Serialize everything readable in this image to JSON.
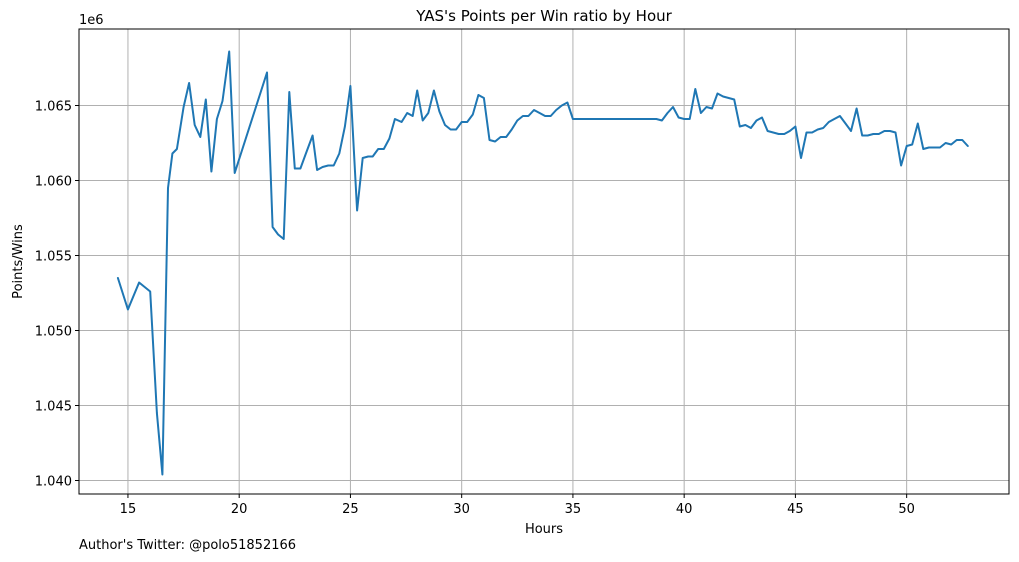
{
  "chart_data": {
    "type": "line",
    "title": "YAS's Points per Win ratio by Hour",
    "xlabel": "Hours",
    "ylabel": "Points/Wins",
    "offset_label": "1e6",
    "xlim": [
      12.8,
      54.6
    ],
    "ylim": [
      1.0391,
      1.0701
    ],
    "x_ticks": [
      15,
      20,
      25,
      30,
      35,
      40,
      45,
      50
    ],
    "y_ticks": [
      1.04,
      1.045,
      1.05,
      1.055,
      1.06,
      1.065
    ],
    "x_tick_labels": [
      "15",
      "20",
      "25",
      "30",
      "35",
      "40",
      "45",
      "50"
    ],
    "y_tick_labels": [
      "1.040",
      "1.045",
      "1.050",
      "1.055",
      "1.060",
      "1.065"
    ],
    "grid": true,
    "line_color": "#1f77b4",
    "series": [
      {
        "x": [
          14.55,
          15.0,
          15.5,
          16.0,
          16.3,
          16.55,
          16.8,
          17.0,
          17.2,
          17.5,
          17.75,
          18.0,
          18.25,
          18.5,
          18.75,
          19.0,
          19.25,
          19.55,
          19.8,
          21.25,
          21.5,
          21.75,
          22.0,
          22.25,
          22.5,
          22.75,
          23.0,
          23.3,
          23.5,
          23.75,
          24.0,
          24.25,
          24.5,
          24.75,
          25.0,
          25.3,
          25.55,
          25.8,
          26.0,
          26.25,
          26.5,
          26.75,
          27.0,
          27.3,
          27.55,
          27.8,
          28.0,
          28.25,
          28.5,
          28.75,
          29.0,
          29.25,
          29.5,
          29.75,
          30.0,
          30.25,
          30.5,
          30.75,
          31.0,
          31.25,
          31.5,
          31.75,
          32.0,
          32.25,
          32.5,
          32.75,
          33.0,
          33.25,
          33.5,
          33.75,
          34.0,
          34.25,
          34.5,
          34.75,
          35.0,
          38.75,
          39.0,
          39.25,
          39.5,
          39.75,
          40.0,
          40.25,
          40.5,
          40.75,
          41.0,
          41.25,
          41.5,
          41.75,
          42.0,
          42.25,
          42.5,
          42.75,
          43.0,
          43.25,
          43.5,
          43.75,
          44.0,
          44.25,
          44.5,
          44.75,
          45.0,
          45.25,
          45.5,
          45.75,
          46.0,
          46.25,
          46.5,
          46.75,
          47.0,
          47.25,
          47.5,
          47.75,
          48.0,
          48.25,
          48.5,
          48.75,
          49.0,
          49.25,
          49.5,
          49.75,
          50.0,
          50.25,
          50.5,
          50.75,
          51.0,
          51.25,
          51.5,
          51.75,
          52.0,
          52.25,
          52.5,
          52.75
        ],
        "y": [
          1.0535,
          1.0514,
          1.0532,
          1.0526,
          1.0445,
          1.0404,
          1.0595,
          1.0618,
          1.0621,
          1.0649,
          1.0665,
          1.0637,
          1.0629,
          1.0654,
          1.0606,
          1.0641,
          1.0653,
          1.0686,
          1.0605,
          1.0672,
          1.0569,
          1.0564,
          1.0561,
          1.0659,
          1.0608,
          1.0608,
          1.0618,
          1.063,
          1.0607,
          1.0609,
          1.061,
          1.061,
          1.0618,
          1.0636,
          1.0663,
          1.058,
          1.0615,
          1.0616,
          1.0616,
          1.0621,
          1.0621,
          1.0628,
          1.0641,
          1.0639,
          1.0645,
          1.0643,
          1.066,
          1.064,
          1.0645,
          1.066,
          1.0646,
          1.0637,
          1.0634,
          1.0634,
          1.0639,
          1.0639,
          1.0644,
          1.0657,
          1.0655,
          1.0627,
          1.0626,
          1.0629,
          1.0629,
          1.0634,
          1.064,
          1.0643,
          1.0643,
          1.0647,
          1.0645,
          1.0643,
          1.0643,
          1.0647,
          1.065,
          1.0652,
          1.0641,
          1.0641,
          1.064,
          1.0645,
          1.0649,
          1.0642,
          1.0641,
          1.0641,
          1.0661,
          1.0645,
          1.0649,
          1.0648,
          1.0658,
          1.0656,
          1.0655,
          1.0654,
          1.0636,
          1.0637,
          1.0635,
          1.064,
          1.0642,
          1.0633,
          1.0632,
          1.0631,
          1.0631,
          1.0633,
          1.0636,
          1.0615,
          1.0632,
          1.0632,
          1.0634,
          1.0635,
          1.0639,
          1.0641,
          1.0643,
          1.0638,
          1.0633,
          1.0648,
          1.063,
          1.063,
          1.0631,
          1.0631,
          1.0633,
          1.0633,
          1.0632,
          1.061,
          1.0623,
          1.0624,
          1.0638,
          1.0621,
          1.0622,
          1.0622,
          1.0622,
          1.0625,
          1.0624,
          1.0627,
          1.0627,
          1.0623
        ]
      }
    ]
  },
  "footer": {
    "credit": "Author's Twitter: @polo51852166"
  }
}
